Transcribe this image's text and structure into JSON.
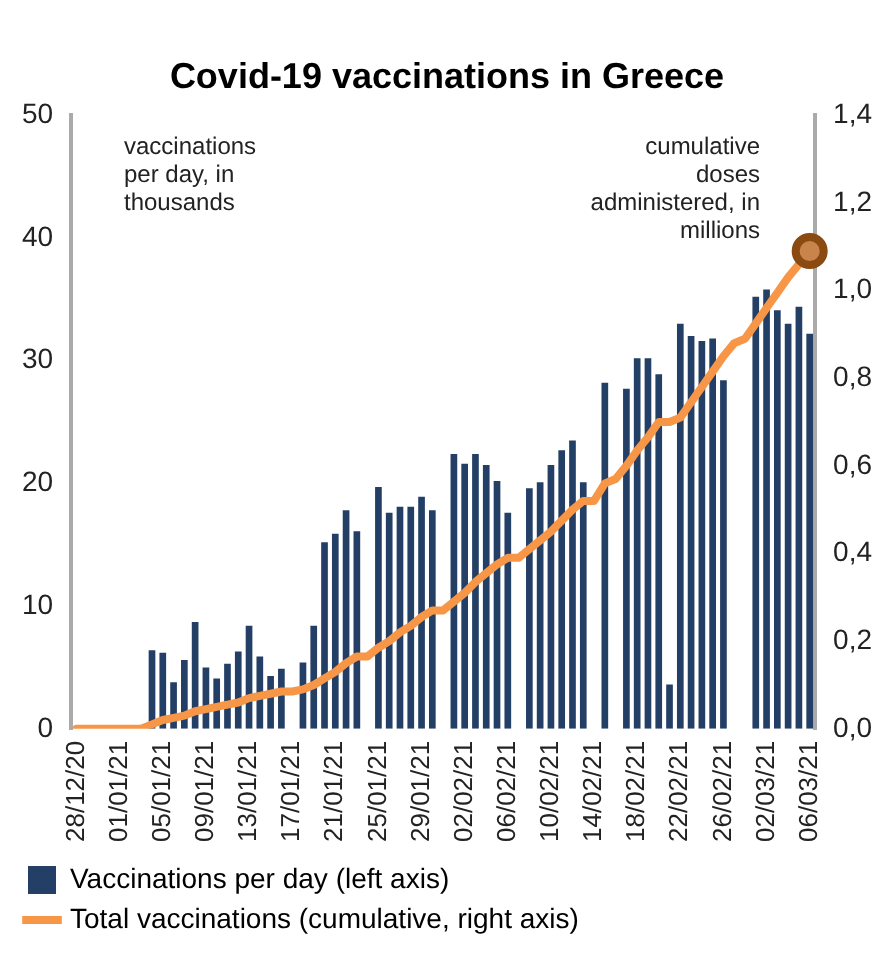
{
  "chart_data": {
    "type": "bar",
    "title": "Covid-19 vaccinations in Greece",
    "ylabel": "vaccinations per day, in thousands",
    "y2label": "cumulative doses administered, in millions",
    "categories": [
      "28/12/20",
      null,
      null,
      null,
      "01/01/21",
      null,
      null,
      null,
      "05/01/21",
      null,
      null,
      null,
      "09/01/21",
      null,
      null,
      null,
      "13/01/21",
      null,
      null,
      null,
      "17/01/21",
      null,
      null,
      null,
      "21/01/21",
      null,
      null,
      null,
      "25/01/21",
      null,
      null,
      null,
      "29/01/21",
      null,
      null,
      null,
      "02/02/21",
      null,
      null,
      null,
      "06/02/21",
      null,
      null,
      null,
      "10/02/21",
      null,
      null,
      null,
      "14/02/21",
      null,
      null,
      null,
      "18/02/21",
      null,
      null,
      null,
      "22/02/21",
      null,
      null,
      null,
      "26/02/21",
      null,
      null,
      null,
      "02/03/21",
      null,
      null,
      null,
      "06/03/21"
    ],
    "series": [
      {
        "name": "Vaccinations per day (left axis)",
        "color": "#243f66",
        "values": [
          null,
          null,
          null,
          null,
          0,
          0,
          0,
          6.4,
          6.2,
          3.8,
          5.6,
          8.7,
          5.0,
          4.1,
          5.3,
          6.3,
          8.4,
          5.9,
          4.3,
          4.9,
          0,
          5.4,
          8.4,
          15.2,
          15.9,
          17.8,
          16.1,
          0,
          19.7,
          17.6,
          18.1,
          18.1,
          18.9,
          17.8,
          0,
          22.4,
          21.6,
          22.4,
          21.5,
          20.2,
          17.6,
          0,
          19.6,
          20.1,
          21.5,
          22.7,
          23.5,
          20.1,
          0,
          28.2,
          0,
          27.7,
          30.2,
          30.2,
          28.9,
          3.6,
          33.0,
          32.0,
          31.6,
          31.8,
          28.4,
          0,
          0,
          35.2,
          35.8,
          34.1,
          33.0,
          34.4,
          32.2
        ]
      },
      {
        "name": "Total vaccinations (cumulative, right axis)",
        "type": "line",
        "axis": "y2",
        "color": "#f79646",
        "values": [
          0,
          0,
          0,
          0,
          0,
          0,
          0,
          0.01,
          0.02,
          0.025,
          0.03,
          0.04,
          0.045,
          0.05,
          0.055,
          0.06,
          0.07,
          0.075,
          0.08,
          0.085,
          0.085,
          0.09,
          0.1,
          0.115,
          0.13,
          0.15,
          0.165,
          0.165,
          0.185,
          0.2,
          0.22,
          0.235,
          0.255,
          0.27,
          0.27,
          0.29,
          0.31,
          0.335,
          0.355,
          0.375,
          0.39,
          0.39,
          0.41,
          0.43,
          0.45,
          0.475,
          0.5,
          0.52,
          0.52,
          0.56,
          0.57,
          0.6,
          0.635,
          0.665,
          0.7,
          0.7,
          0.71,
          0.745,
          0.78,
          0.815,
          0.85,
          0.88,
          0.89,
          0.925,
          0.96,
          0.995,
          1.03,
          1.06,
          1.09
        ]
      }
    ],
    "ylim": [
      0,
      50
    ],
    "yticks": [
      0,
      10,
      20,
      30,
      40,
      50
    ],
    "y2lim": [
      0,
      1.4
    ],
    "y2ticks": [
      {
        "value": 0,
        "label": "0,0"
      },
      {
        "value": 0.2,
        "label": "0,2"
      },
      {
        "value": 0.4,
        "label": "0,4"
      },
      {
        "value": 0.6,
        "label": "0,6"
      },
      {
        "value": 0.8,
        "label": "0,8"
      },
      {
        "value": 1.0,
        "label": "1,0"
      },
      {
        "value": 1.2,
        "label": "1,2"
      },
      {
        "value": 1.4,
        "label": "1,4"
      }
    ],
    "grid": false,
    "legend": "bottom"
  }
}
